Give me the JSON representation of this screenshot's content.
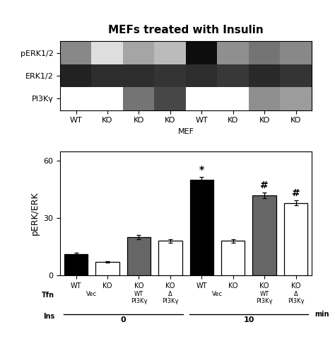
{
  "chart_data": [
    {
      "type": "heatmap",
      "title": "MEFs treated with Insulin",
      "xlabel": "MEF",
      "categories": [
        "WT",
        "KO",
        "KO",
        "KO",
        "WT",
        "KO",
        "KO",
        "KO"
      ],
      "rows": [
        "pERK1/2",
        "ERK1/2",
        "PI3Kγ"
      ],
      "cells": [
        [
          0.55,
          0.22,
          0.45,
          0.38,
          0.95,
          0.52,
          0.62,
          0.55
        ],
        [
          0.88,
          0.85,
          0.85,
          0.83,
          0.85,
          0.82,
          0.86,
          0.83
        ],
        [
          0.0,
          0.0,
          0.62,
          0.78,
          0.0,
          0.0,
          0.52,
          0.48
        ]
      ],
      "color_range": [
        0,
        1
      ]
    },
    {
      "type": "bar",
      "ylabel": "pERK/ERK",
      "categories": [
        "WT",
        "KO",
        "KO",
        "KO",
        "WT",
        "KO",
        "KO",
        "KO"
      ],
      "category_groups": [
        {
          "title": "Tfn",
          "labels": [
            "Vec",
            "Vec",
            "WT PI3Kγ",
            "Δ PI3Kγ",
            "Vec",
            "Vec",
            "WT PI3Kγ",
            "Δ PI3Kγ"
          ]
        },
        {
          "title": "Ins",
          "labels": [
            "0",
            "0",
            "0",
            "0",
            "10",
            "10",
            "10",
            "10"
          ],
          "unit": "min"
        }
      ],
      "values": [
        11,
        7,
        20,
        18,
        50,
        18,
        42,
        38
      ],
      "errors": [
        0.8,
        0.5,
        1.2,
        1.0,
        1.5,
        0.8,
        1.5,
        1.3
      ],
      "colors": [
        "#000000",
        "#ffffff",
        "#666666",
        "#ffffff",
        "#000000",
        "#ffffff",
        "#666666",
        "#ffffff"
      ],
      "ylim": [
        0,
        65
      ],
      "yticks": [
        0,
        30,
        60
      ],
      "annotations": [
        {
          "index": 4,
          "text": "*"
        },
        {
          "index": 6,
          "text": "#"
        },
        {
          "index": 7,
          "text": "#"
        }
      ]
    }
  ]
}
